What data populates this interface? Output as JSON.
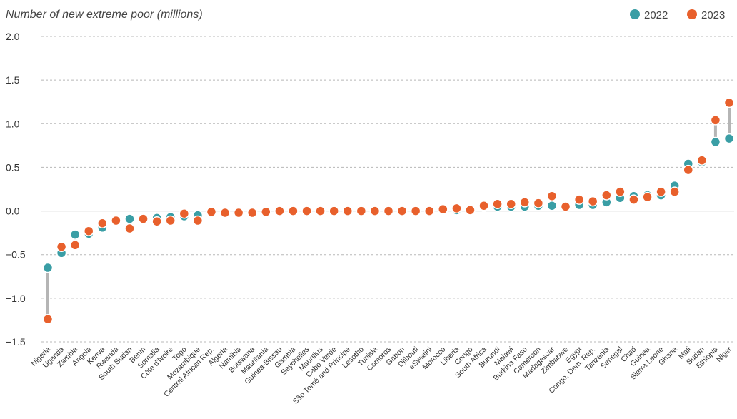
{
  "chart_data": {
    "type": "scatter",
    "title": "Number of new extreme poor (millions)",
    "ylim": [
      -1.5,
      2.0
    ],
    "yticks": [
      2.0,
      1.5,
      1.0,
      0.5,
      0.0,
      -0.5,
      -1.0,
      -1.5
    ],
    "ytick_labels": [
      "2.0",
      "1.5",
      "1.0",
      "0.5",
      "0.0",
      "−0.5",
      "−1.0",
      "−1.5"
    ],
    "grid": true,
    "legend_position": "top-right",
    "categories": [
      "Nigeria",
      "Uganda",
      "Zambia",
      "Angola",
      "Kenya",
      "Rwanda",
      "South Sudan",
      "Benin",
      "Somalia",
      "Côte d'Ivoire",
      "Togo",
      "Mozambique",
      "Central African Rep.",
      "Algeria",
      "Namibia",
      "Botswana",
      "Mauritania",
      "Guinea-Bissau",
      "Gambia",
      "Seychelles",
      "Mauritius",
      "Cabo Verde",
      "São Tomé and Principe",
      "Lesotho",
      "Tunisia",
      "Comoros",
      "Gabon",
      "Djibouti",
      "eSwatini",
      "Morocco",
      "Liberia",
      "Congo",
      "South Africa",
      "Burundi",
      "Malawi",
      "Burkina Faso",
      "Cameroon",
      "Madagascar",
      "Zimbabwe",
      "Egypt",
      "Congo, Dem. Rep.",
      "Tanzania",
      "Senegal",
      "Chad",
      "Guinea",
      "Sierra Leone",
      "Ghana",
      "Mali",
      "Sudan",
      "Ethiopia",
      "Niger"
    ],
    "series": [
      {
        "name": "2022",
        "color": "#3a9ea5",
        "values": [
          -0.65,
          -0.48,
          -0.27,
          -0.26,
          -0.19,
          -0.11,
          -0.09,
          -0.09,
          -0.08,
          -0.07,
          -0.06,
          -0.05,
          -0.02,
          -0.02,
          -0.02,
          -0.02,
          -0.01,
          0.0,
          0.0,
          0.0,
          0.0,
          0.0,
          0.0,
          0.0,
          0.0,
          0.0,
          0.0,
          0.0,
          0.0,
          0.01,
          0.01,
          0.01,
          0.05,
          0.05,
          0.05,
          0.05,
          0.06,
          0.06,
          0.06,
          0.07,
          0.07,
          0.1,
          0.15,
          0.17,
          0.18,
          0.18,
          0.29,
          0.54,
          0.56,
          0.79,
          0.83
        ]
      },
      {
        "name": "2023",
        "color": "#e8602c",
        "values": [
          -1.24,
          -0.41,
          -0.39,
          -0.23,
          -0.14,
          -0.11,
          -0.2,
          -0.09,
          -0.12,
          -0.11,
          -0.03,
          -0.11,
          -0.01,
          -0.02,
          -0.02,
          -0.02,
          -0.01,
          0.0,
          0.0,
          0.0,
          0.0,
          0.0,
          0.0,
          0.0,
          0.0,
          0.0,
          0.0,
          0.0,
          0.0,
          0.02,
          0.03,
          0.01,
          0.06,
          0.08,
          0.08,
          0.1,
          0.09,
          0.17,
          0.05,
          0.13,
          0.11,
          0.18,
          0.22,
          0.13,
          0.16,
          0.22,
          0.22,
          0.47,
          0.58,
          1.04,
          1.24
        ]
      }
    ]
  }
}
